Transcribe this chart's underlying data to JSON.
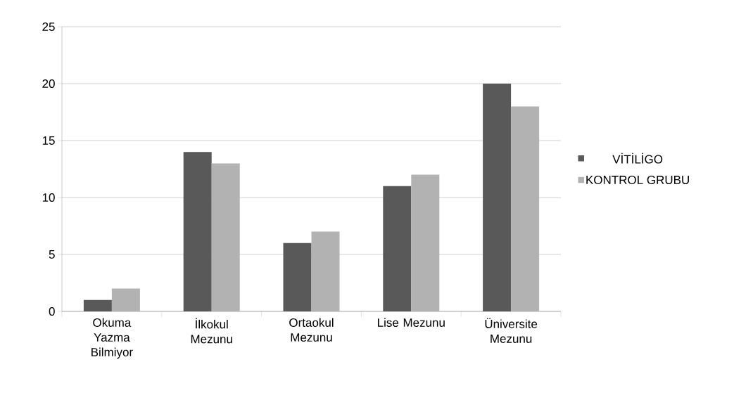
{
  "chart_data": {
    "type": "bar",
    "categories": [
      "Okuma Yazma Bilmiyor",
      "İlkokul Mezunu",
      "Ortaokul Mezunu",
      "Lise Mezunu",
      "Üniversite Mezunu"
    ],
    "series": [
      {
        "name": "VİTİLİGO",
        "color": "#595959",
        "values": [
          1,
          14,
          6,
          11,
          20
        ]
      },
      {
        "name": "KONTROL GRUBU",
        "color": "#b2b2b2",
        "values": [
          2,
          13,
          7,
          12,
          18
        ]
      }
    ],
    "ylim": [
      0,
      25
    ],
    "yticks": [
      0,
      5,
      10,
      15,
      20,
      25
    ],
    "grid": "y",
    "legend": "right"
  }
}
